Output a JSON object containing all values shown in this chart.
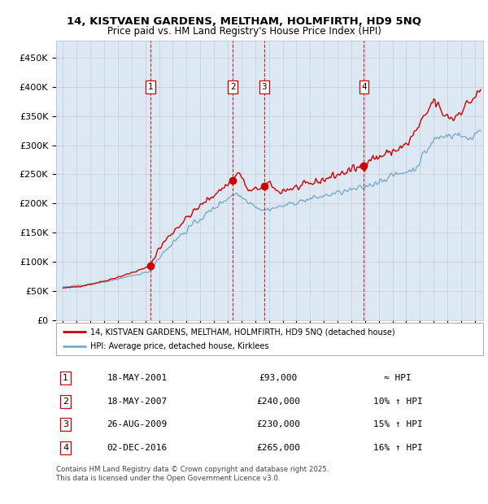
{
  "title_line1": "14, KISTVAEN GARDENS, MELTHAM, HOLMFIRTH, HD9 5NQ",
  "title_line2": "Price paid vs. HM Land Registry's House Price Index (HPI)",
  "hpi_label": "HPI: Average price, detached house, Kirklees",
  "property_label": "14, KISTVAEN GARDENS, MELTHAM, HOLMFIRTH, HD9 5NQ (detached house)",
  "sale_color": "#cc0000",
  "hpi_color": "#7aaacc",
  "background_color": "#dce9f5",
  "grid_color": "#cccccc",
  "ylim": [
    0,
    480000
  ],
  "yticks": [
    0,
    50000,
    100000,
    150000,
    200000,
    250000,
    300000,
    350000,
    400000,
    450000
  ],
  "ytick_labels": [
    "£0",
    "£50K",
    "£100K",
    "£150K",
    "£200K",
    "£250K",
    "£300K",
    "£350K",
    "£400K",
    "£450K"
  ],
  "xlim_start": 1994.5,
  "xlim_end": 2025.6,
  "xticks": [
    1995,
    1996,
    1997,
    1998,
    1999,
    2000,
    2001,
    2002,
    2003,
    2004,
    2005,
    2006,
    2007,
    2008,
    2009,
    2010,
    2011,
    2012,
    2013,
    2014,
    2015,
    2016,
    2017,
    2018,
    2019,
    2020,
    2021,
    2022,
    2023,
    2024,
    2025
  ],
  "sale_dates": [
    2001.37,
    2007.37,
    2009.65,
    2016.92
  ],
  "sale_prices": [
    93000,
    240000,
    230000,
    265000
  ],
  "sale_labels": [
    "1",
    "2",
    "3",
    "4"
  ],
  "sale_date_strs": [
    "18-MAY-2001",
    "18-MAY-2007",
    "26-AUG-2009",
    "02-DEC-2016"
  ],
  "sale_relation": [
    "≈ HPI",
    "10% ↑ HPI",
    "15% ↑ HPI",
    "16% ↑ HPI"
  ],
  "vline_color": "#cc0000",
  "footer_text": "Contains HM Land Registry data © Crown copyright and database right 2025.\nThis data is licensed under the Open Government Licence v3.0."
}
